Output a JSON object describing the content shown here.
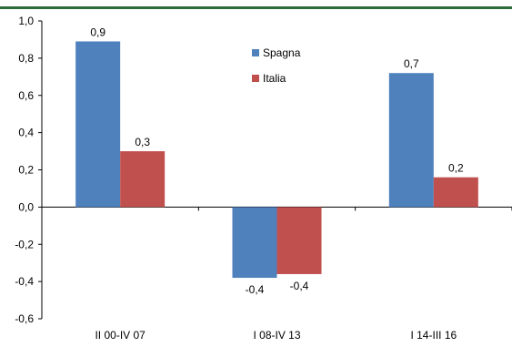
{
  "colors": {
    "top_rule": "#2e6b3a",
    "axis": "#000000",
    "text": "#000000"
  },
  "chart_data": {
    "type": "bar",
    "categories": [
      "II 00-IV 07",
      "I 08-IV 13",
      "I 14-III 16"
    ],
    "series": [
      {
        "name": "Spagna",
        "color": "#4f81bd",
        "values": [
          0.89,
          -0.38,
          0.72
        ],
        "labels": [
          "0,9",
          "-0,4",
          "0,7"
        ]
      },
      {
        "name": "Italia",
        "color": "#c0504d",
        "values": [
          0.3,
          -0.36,
          0.16
        ],
        "labels": [
          "0,3",
          "-0,4",
          "0,2"
        ]
      }
    ],
    "ylim": [
      -0.6,
      1.0
    ],
    "yticks": [
      1.0,
      0.8,
      0.6,
      0.4,
      0.2,
      0.0,
      -0.2,
      -0.4,
      -0.6
    ],
    "ytick_labels": [
      "1,0",
      "0,8",
      "0,6",
      "0,4",
      "0,2",
      "0,0",
      "-0,2",
      "-0,4",
      "-0,6"
    ],
    "legend_position": "top-center",
    "grid": false
  }
}
